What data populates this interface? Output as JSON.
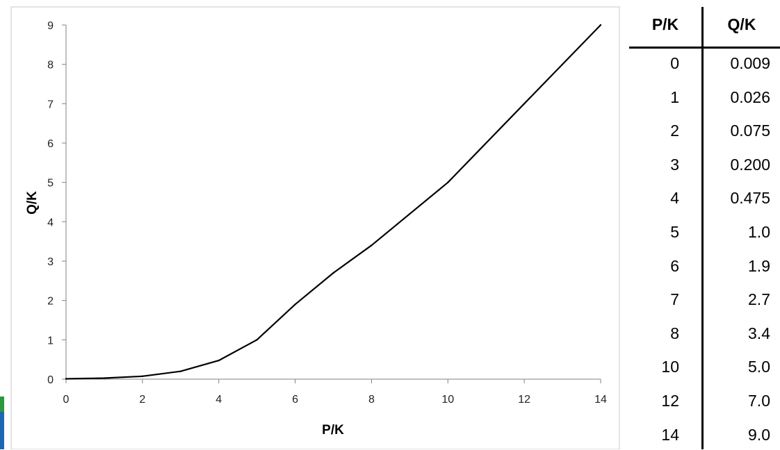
{
  "chart_data": {
    "type": "line",
    "xlabel": "P/K",
    "ylabel": "Q/K",
    "xlim": [
      0,
      14
    ],
    "ylim": [
      0,
      9
    ],
    "x_ticks": [
      "0",
      "2",
      "4",
      "6",
      "8",
      "10",
      "12",
      "14"
    ],
    "y_ticks": [
      "0",
      "1",
      "2",
      "3",
      "4",
      "5",
      "6",
      "7",
      "8",
      "9"
    ],
    "grid": false,
    "legend": "none",
    "series": [
      {
        "x": [
          0,
          1,
          2,
          3,
          4,
          5,
          6,
          7,
          8,
          10,
          12,
          14
        ],
        "y": [
          0.009,
          0.026,
          0.075,
          0.2,
          0.475,
          1.0,
          1.9,
          2.7,
          3.4,
          5.0,
          7.0,
          9.0
        ]
      }
    ],
    "line_color": "#000000"
  },
  "table": {
    "headers": [
      "P/K",
      "Q/K"
    ],
    "rows": [
      [
        "0",
        "0.009"
      ],
      [
        "1",
        "0.026"
      ],
      [
        "2",
        "0.075"
      ],
      [
        "3",
        "0.200"
      ],
      [
        "4",
        "0.475"
      ],
      [
        "5",
        "1.0"
      ],
      [
        "6",
        "1.9"
      ],
      [
        "7",
        "2.7"
      ],
      [
        "8",
        "3.4"
      ],
      [
        "10",
        "5.0"
      ],
      [
        "12",
        "7.0"
      ],
      [
        "14",
        "9.0"
      ]
    ]
  }
}
